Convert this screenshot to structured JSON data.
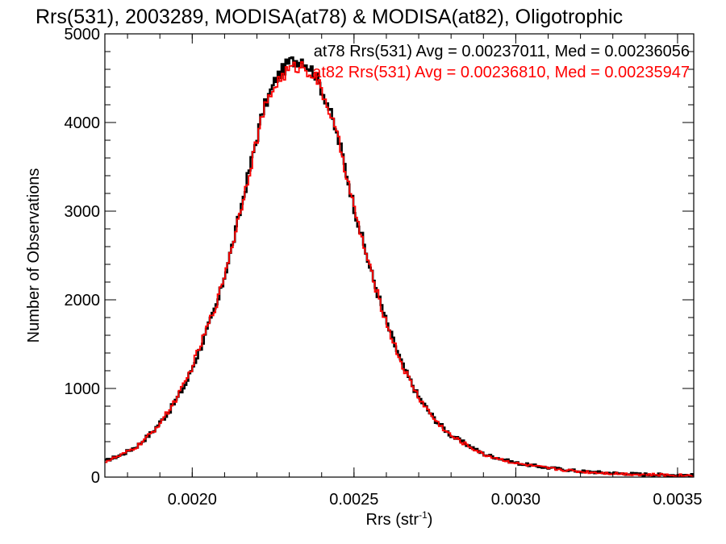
{
  "chart_data": {
    "type": "line",
    "title": "Rrs(531), 2003289, MODISA(at78) & MODISA(at82), Oligotrophic",
    "xlabel_main": "Rrs (str",
    "xlabel_sup": "-1",
    "xlabel_close": ")",
    "ylabel": "Number of Observations",
    "xlim": [
      0.00173,
      0.00355
    ],
    "ylim": [
      0,
      5000
    ],
    "x_ticks": [
      {
        "value": 0.002,
        "label": "0.0020"
      },
      {
        "value": 0.0025,
        "label": "0.0025"
      },
      {
        "value": 0.003,
        "label": "0.0030"
      },
      {
        "value": 0.0035,
        "label": "0.0035"
      }
    ],
    "x_minor_step": 0.0001,
    "y_ticks": [
      {
        "value": 0,
        "label": "0"
      },
      {
        "value": 1000,
        "label": "1000"
      },
      {
        "value": 2000,
        "label": "2000"
      },
      {
        "value": 3000,
        "label": "3000"
      },
      {
        "value": 4000,
        "label": "4000"
      },
      {
        "value": 5000,
        "label": "5000"
      }
    ],
    "y_minor_step": 200,
    "grid": false,
    "legend_placement": "top-right",
    "series": [
      {
        "name": "at78",
        "color": "#000000",
        "legend": "at78 Rrs(531) Avg = 0.00237011, Med = 0.00236056",
        "x": [
          0.00173,
          0.00178,
          0.00183,
          0.00188,
          0.00193,
          0.00198,
          0.00203,
          0.00208,
          0.00213,
          0.00218,
          0.00222,
          0.00226,
          0.0023,
          0.00234,
          0.00238,
          0.00242,
          0.00246,
          0.0025,
          0.00255,
          0.0026,
          0.00265,
          0.0027,
          0.00275,
          0.0028,
          0.0029,
          0.003,
          0.0031,
          0.0032,
          0.0033,
          0.0034,
          0.00355
        ],
        "y": [
          180,
          250,
          350,
          520,
          750,
          1050,
          1500,
          1990,
          2700,
          3520,
          4150,
          4500,
          4680,
          4720,
          4550,
          4200,
          3700,
          3050,
          2350,
          1750,
          1260,
          900,
          650,
          470,
          260,
          160,
          105,
          65,
          45,
          30,
          20
        ]
      },
      {
        "name": "at82",
        "color": "#ff0000",
        "legend": "at82 Rrs(531) Avg = 0.00236810, Med = 0.00235947",
        "x": [
          0.00173,
          0.00178,
          0.00183,
          0.00188,
          0.00193,
          0.00198,
          0.00203,
          0.00208,
          0.00213,
          0.00218,
          0.00222,
          0.00226,
          0.0023,
          0.00234,
          0.00238,
          0.00242,
          0.00246,
          0.0025,
          0.00255,
          0.0026,
          0.00265,
          0.0027,
          0.00275,
          0.0028,
          0.0029,
          0.003,
          0.0031,
          0.0032,
          0.0033,
          0.0034,
          0.00355
        ],
        "y": [
          175,
          245,
          345,
          515,
          760,
          1070,
          1530,
          2010,
          2710,
          3500,
          4120,
          4450,
          4600,
          4640,
          4520,
          4180,
          3690,
          3030,
          2340,
          1740,
          1250,
          900,
          645,
          465,
          255,
          155,
          100,
          62,
          42,
          28,
          18
        ]
      }
    ]
  }
}
